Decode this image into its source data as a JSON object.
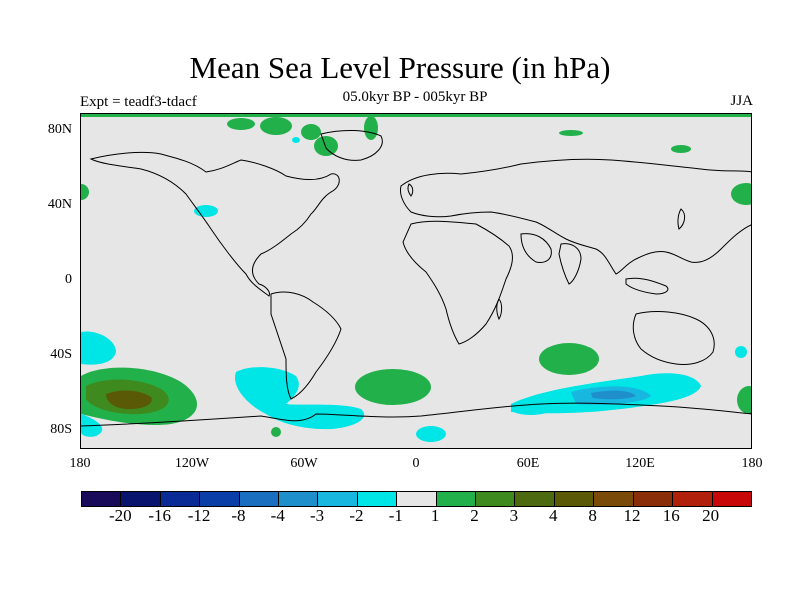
{
  "title": "Mean Sea Level Pressure (in hPa)",
  "subtitle": "05.0kyr BP - 005kyr BP",
  "left_label": "Expt = teadf3-tdacf",
  "right_label": "JJA",
  "y_ticks": [
    "80N",
    "40N",
    "0",
    "40S",
    "80S"
  ],
  "x_ticks": [
    "180",
    "120W",
    "60W",
    "0",
    "60E",
    "120E",
    "180"
  ],
  "colorbar": {
    "colors": [
      "#1a0a5a",
      "#08146e",
      "#0a2a96",
      "#0b3fa8",
      "#1a6fc0",
      "#1f8fcc",
      "#17b7df",
      "#00e5e5",
      "#e6e6e6",
      "#21b04a",
      "#3f8a1e",
      "#4d6a10",
      "#5a5a06",
      "#7a4a08",
      "#8a2e0a",
      "#b0200a",
      "#c80808"
    ],
    "labels": [
      "-20",
      "-16",
      "-12",
      "-8",
      "-4",
      "-3",
      "-2",
      "-1",
      "1",
      "2",
      "3",
      "4",
      "8",
      "12",
      "16",
      "20"
    ]
  },
  "colors": {
    "background": "#e6e6e6",
    "land_outline": "#000000",
    "neg1": "#00e5e5",
    "neg2": "#17b7df",
    "neg3": "#1f8fcc",
    "pos1": "#21b04a",
    "pos2": "#3f8a1e",
    "pos3": "#5a5a06"
  }
}
